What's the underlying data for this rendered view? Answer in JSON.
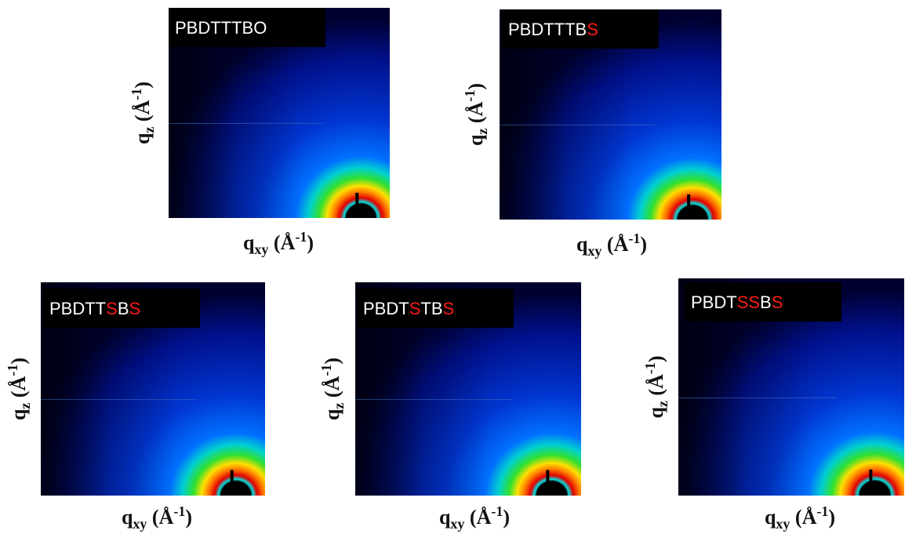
{
  "axis_labels": {
    "x": {
      "base": "q",
      "sub": "xy",
      "open": " (Å",
      "sup": "-1",
      "close": ")"
    },
    "y": {
      "base": "q",
      "sub": "z",
      "open": " (Å",
      "sup": "-1",
      "close": ")"
    }
  },
  "panels": [
    {
      "label": [
        {
          "text": "PBDTTTBO",
          "color": "#ffffff"
        }
      ]
    },
    {
      "label": [
        {
          "text": "PBDTTTB",
          "color": "#ffffff"
        },
        {
          "text": "S",
          "color": "#ff1a1a"
        }
      ]
    },
    {
      "label": [
        {
          "text": "PBDTT",
          "color": "#ffffff"
        },
        {
          "text": "S",
          "color": "#ff1a1a"
        },
        {
          "text": "B",
          "color": "#ffffff"
        },
        {
          "text": "S",
          "color": "#ff1a1a"
        }
      ]
    },
    {
      "label": [
        {
          "text": "PBDT",
          "color": "#ffffff"
        },
        {
          "text": "S",
          "color": "#ff1a1a"
        },
        {
          "text": "TB",
          "color": "#ffffff"
        },
        {
          "text": "S",
          "color": "#ff1a1a"
        }
      ]
    },
    {
      "label": [
        {
          "text": "PBDT",
          "color": "#ffffff"
        },
        {
          "text": "SS",
          "color": "#ff1a1a"
        },
        {
          "text": "B",
          "color": "#ffffff"
        },
        {
          "text": "S",
          "color": "#ff1a1a"
        }
      ]
    }
  ]
}
